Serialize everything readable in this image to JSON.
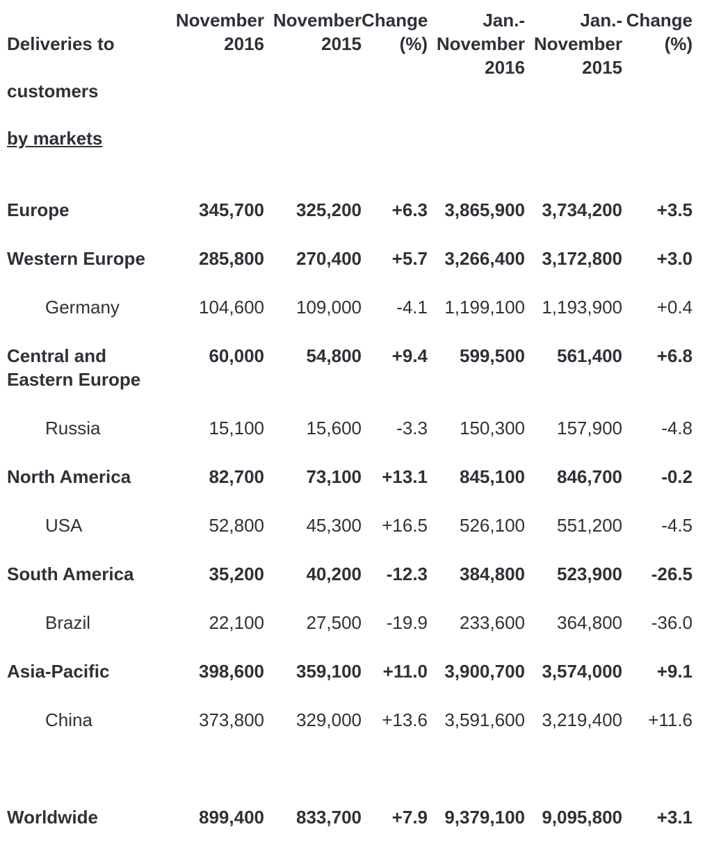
{
  "table": {
    "title_lines": [
      "Deliveries to",
      "customers",
      "by markets"
    ],
    "header": {
      "columns": [
        "November\n2016",
        "November\n2015",
        "Change\n(%)",
        "Jan.-\nNovember\n2016",
        "Jan.-\nNovember\n2015",
        "Change\n(%)"
      ]
    },
    "rows": [
      {
        "label": "Europe",
        "bold": true,
        "indent": false,
        "spacer": false,
        "values": [
          "345,700",
          "325,200",
          "+6.3",
          "3,865,900",
          "3,734,200",
          "+3.5"
        ]
      },
      {
        "label": "Western Europe",
        "bold": true,
        "indent": false,
        "spacer": false,
        "values": [
          "285,800",
          "270,400",
          "+5.7",
          "3,266,400",
          "3,172,800",
          "+3.0"
        ]
      },
      {
        "label": "Germany",
        "bold": false,
        "indent": true,
        "spacer": false,
        "values": [
          "104,600",
          "109,000",
          "-4.1",
          "1,199,100",
          "1,193,900",
          "+0.4"
        ]
      },
      {
        "label": "Central and\nEastern Europe",
        "bold": true,
        "indent": false,
        "spacer": false,
        "values": [
          "60,000",
          "54,800",
          "+9.4",
          "599,500",
          "561,400",
          "+6.8"
        ]
      },
      {
        "label": "Russia",
        "bold": false,
        "indent": true,
        "spacer": false,
        "values": [
          "15,100",
          "15,600",
          "-3.3",
          "150,300",
          "157,900",
          "-4.8"
        ]
      },
      {
        "label": "North America",
        "bold": true,
        "indent": false,
        "spacer": false,
        "values": [
          "82,700",
          "73,100",
          "+13.1",
          "845,100",
          "846,700",
          "-0.2"
        ]
      },
      {
        "label": "USA",
        "bold": false,
        "indent": true,
        "spacer": false,
        "values": [
          "52,800",
          "45,300",
          "+16.5",
          "526,100",
          "551,200",
          "-4.5"
        ]
      },
      {
        "label": "South America",
        "bold": true,
        "indent": false,
        "spacer": false,
        "values": [
          "35,200",
          "40,200",
          "-12.3",
          "384,800",
          "523,900",
          "-26.5"
        ]
      },
      {
        "label": "Brazil",
        "bold": false,
        "indent": true,
        "spacer": false,
        "values": [
          "22,100",
          "27,500",
          "-19.9",
          "233,600",
          "364,800",
          "-36.0"
        ]
      },
      {
        "label": "Asia-Pacific",
        "bold": true,
        "indent": false,
        "spacer": false,
        "values": [
          "398,600",
          "359,100",
          "+11.0",
          "3,900,700",
          "3,574,000",
          "+9.1"
        ]
      },
      {
        "label": "China",
        "bold": false,
        "indent": true,
        "spacer": false,
        "values": [
          "373,800",
          "329,000",
          "+13.6",
          "3,591,600",
          "3,219,400",
          "+11.6"
        ]
      },
      {
        "label": "",
        "bold": false,
        "indent": false,
        "spacer": true,
        "values": [
          "",
          "",
          "",
          "",
          "",
          ""
        ]
      },
      {
        "label": "Worldwide",
        "bold": true,
        "indent": false,
        "spacer": false,
        "values": [
          "899,400",
          "833,700",
          "+7.9",
          "9,379,100",
          "9,095,800",
          "+3.1"
        ]
      }
    ]
  },
  "colors": {
    "text": "#30303a",
    "background": "#ffffff"
  }
}
